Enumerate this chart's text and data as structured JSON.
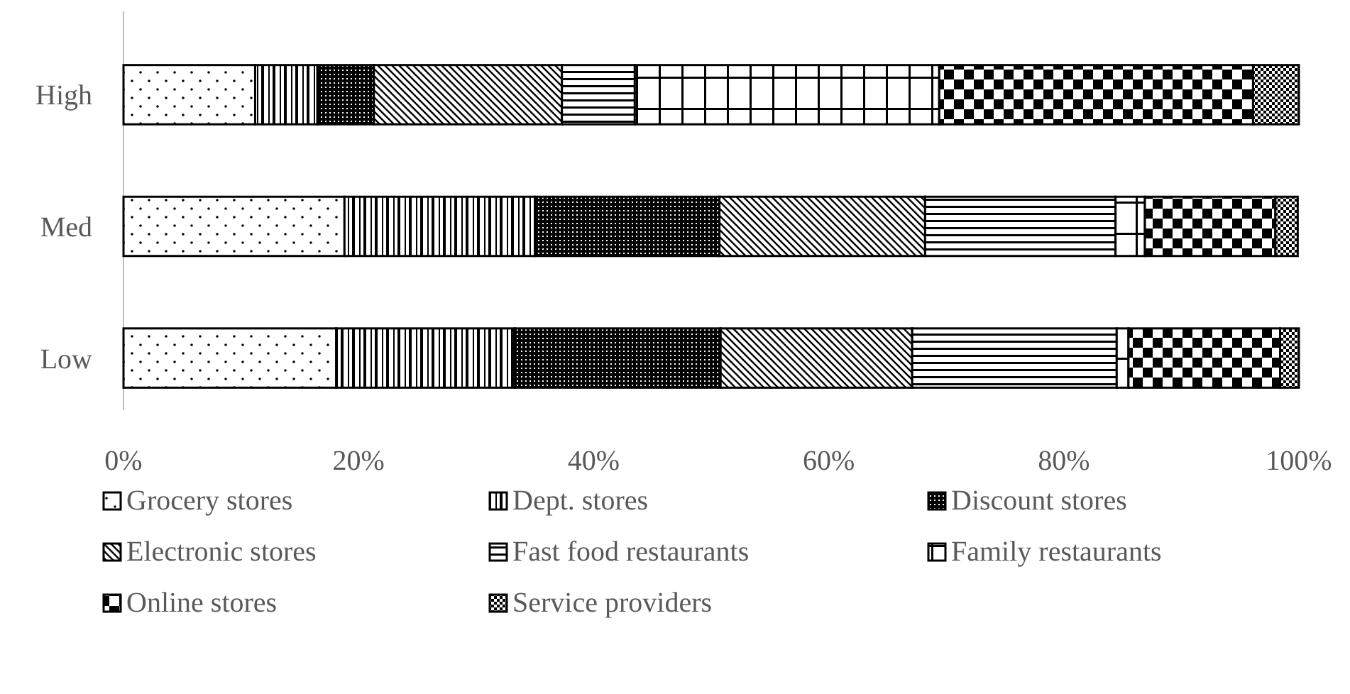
{
  "chart_data": {
    "type": "bar",
    "orientation": "horizontal",
    "stacked": true,
    "categories": [
      "High",
      "Med",
      "Low"
    ],
    "series": [
      {
        "name": "Grocery stores",
        "color": "#000000",
        "values": [
          11.2,
          18.8,
          18.1
        ]
      },
      {
        "name": "Dept. stores",
        "color": "#000000",
        "values": [
          5.3,
          16.2,
          15.2
        ]
      },
      {
        "name": "Discount stores",
        "color": "#000000",
        "values": [
          4.8,
          15.7,
          17.5
        ]
      },
      {
        "name": "Electronic stores",
        "color": "#000000",
        "values": [
          16.0,
          17.5,
          16.3
        ]
      },
      {
        "name": "Fast food restaurants",
        "color": "#000000",
        "values": [
          6.2,
          16.2,
          17.4
        ]
      },
      {
        "name": "Family restaurants",
        "color": "#000000",
        "values": [
          25.9,
          2.5,
          1.0
        ]
      },
      {
        "name": "Online stores",
        "color": "#000000",
        "values": [
          26.7,
          11.1,
          12.9
        ]
      },
      {
        "name": "Service providers",
        "color": "#000000",
        "values": [
          3.9,
          1.9,
          1.6
        ]
      }
    ],
    "xlim": [
      0,
      100
    ],
    "xticks": [
      {
        "value": 0,
        "label": "0%"
      },
      {
        "value": 20,
        "label": "20%"
      },
      {
        "value": 40,
        "label": "40%"
      },
      {
        "value": 60,
        "label": "60%"
      },
      {
        "value": 80,
        "label": "80%"
      },
      {
        "value": 100,
        "label": "100%"
      }
    ],
    "grid": false,
    "legend": "bottom"
  }
}
